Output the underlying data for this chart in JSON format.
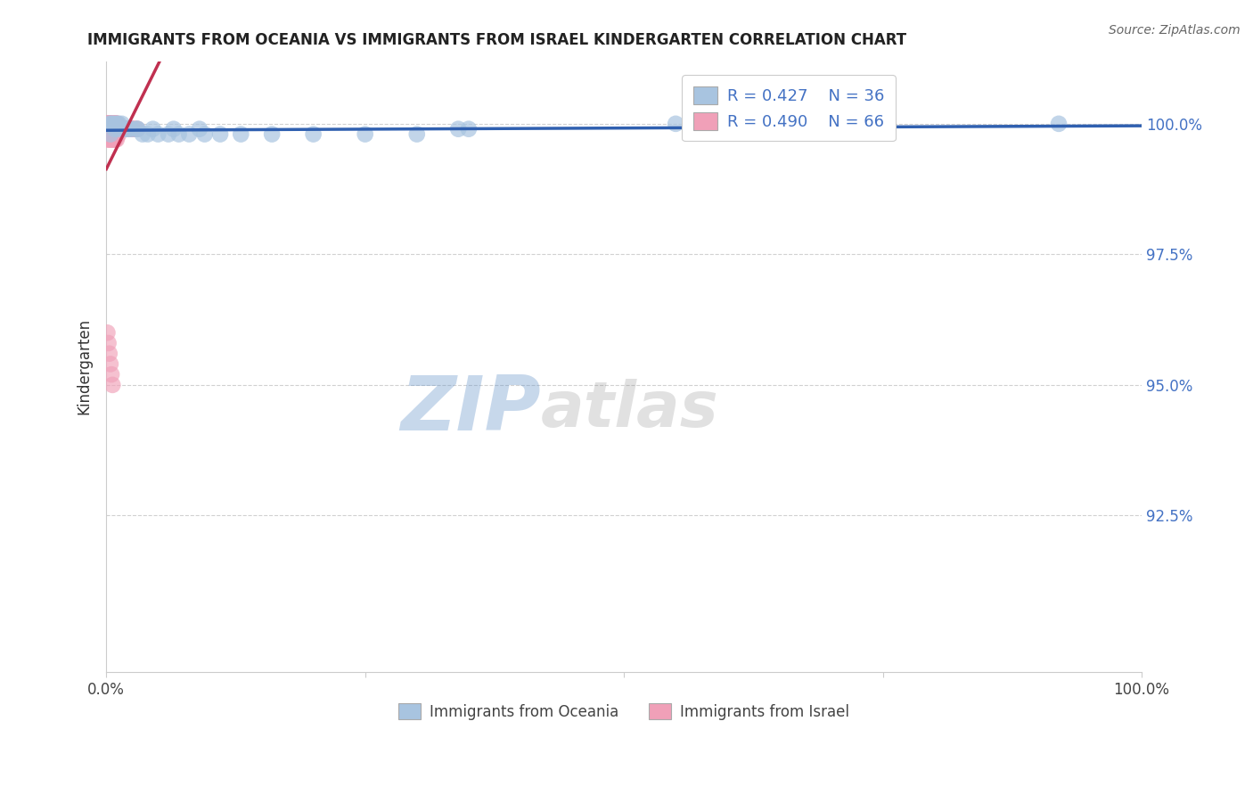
{
  "title": "IMMIGRANTS FROM OCEANIA VS IMMIGRANTS FROM ISRAEL KINDERGARTEN CORRELATION CHART",
  "source": "Source: ZipAtlas.com",
  "ylabel": "Kindergarten",
  "xlim": [
    0.0,
    1.0
  ],
  "ylim": [
    0.895,
    1.012
  ],
  "xticks": [
    0.0,
    0.25,
    0.5,
    0.75,
    1.0
  ],
  "xtick_labels": [
    "0.0%",
    "",
    "",
    "",
    "100.0%"
  ],
  "ytick_labels": [
    "92.5%",
    "95.0%",
    "97.5%",
    "100.0%"
  ],
  "yticks": [
    0.925,
    0.95,
    0.975,
    1.0
  ],
  "legend_r1": "R = 0.427",
  "legend_n1": "N = 36",
  "legend_r2": "R = 0.490",
  "legend_n2": "N = 66",
  "oceania_color": "#a8c4e0",
  "israel_color": "#f0a0b8",
  "line_oceania_color": "#3060b0",
  "line_israel_color": "#c03050",
  "watermark_zip": "ZIP",
  "watermark_atlas": "atlas",
  "oceania_x": [
    0.003,
    0.005,
    0.007,
    0.01,
    0.012,
    0.015,
    0.018,
    0.022,
    0.025,
    0.03,
    0.035,
    0.04,
    0.05,
    0.06,
    0.07,
    0.08,
    0.095,
    0.11,
    0.13,
    0.16,
    0.2,
    0.25,
    0.3,
    0.35,
    0.004,
    0.008,
    0.012,
    0.02,
    0.03,
    0.045,
    0.065,
    0.09,
    0.7,
    0.92,
    0.34,
    0.55
  ],
  "oceania_y": [
    1.0,
    1.0,
    1.0,
    1.0,
    1.0,
    1.0,
    0.999,
    0.999,
    0.999,
    0.999,
    0.998,
    0.998,
    0.998,
    0.998,
    0.998,
    0.998,
    0.998,
    0.998,
    0.998,
    0.998,
    0.998,
    0.998,
    0.998,
    0.999,
    0.998,
    0.999,
    0.999,
    0.999,
    0.999,
    0.999,
    0.999,
    0.999,
    1.0,
    1.0,
    0.999,
    1.0
  ],
  "israel_x": [
    0.001,
    0.001,
    0.001,
    0.002,
    0.002,
    0.002,
    0.003,
    0.003,
    0.003,
    0.004,
    0.004,
    0.005,
    0.005,
    0.006,
    0.006,
    0.007,
    0.007,
    0.008,
    0.008,
    0.009,
    0.009,
    0.01,
    0.01,
    0.011,
    0.012,
    0.013,
    0.014,
    0.015,
    0.016,
    0.017,
    0.018,
    0.019,
    0.02,
    0.021,
    0.022,
    0.024,
    0.025,
    0.026,
    0.028,
    0.03,
    0.002,
    0.003,
    0.004,
    0.005,
    0.006,
    0.007,
    0.008,
    0.009,
    0.01,
    0.012,
    0.001,
    0.002,
    0.003,
    0.004,
    0.005,
    0.006,
    0.007,
    0.008,
    0.009,
    0.01,
    0.001,
    0.002,
    0.003,
    0.004,
    0.005,
    0.006
  ],
  "israel_y": [
    1.0,
    1.0,
    1.0,
    1.0,
    1.0,
    1.0,
    1.0,
    1.0,
    1.0,
    1.0,
    1.0,
    1.0,
    1.0,
    1.0,
    1.0,
    1.0,
    1.0,
    1.0,
    1.0,
    1.0,
    1.0,
    1.0,
    1.0,
    1.0,
    0.999,
    0.999,
    0.999,
    0.999,
    0.999,
    0.999,
    0.999,
    0.999,
    0.999,
    0.999,
    0.999,
    0.999,
    0.999,
    0.999,
    0.999,
    0.999,
    0.998,
    0.998,
    0.998,
    0.998,
    0.998,
    0.998,
    0.998,
    0.998,
    0.998,
    0.998,
    0.997,
    0.997,
    0.997,
    0.997,
    0.997,
    0.997,
    0.997,
    0.997,
    0.997,
    0.997,
    0.96,
    0.958,
    0.956,
    0.954,
    0.952,
    0.95
  ],
  "trendline_oceania": [
    0.0,
    1.0,
    0.973,
    0.999
  ],
  "trendline_israel": [
    0.0,
    0.035,
    0.97,
    1.0
  ]
}
